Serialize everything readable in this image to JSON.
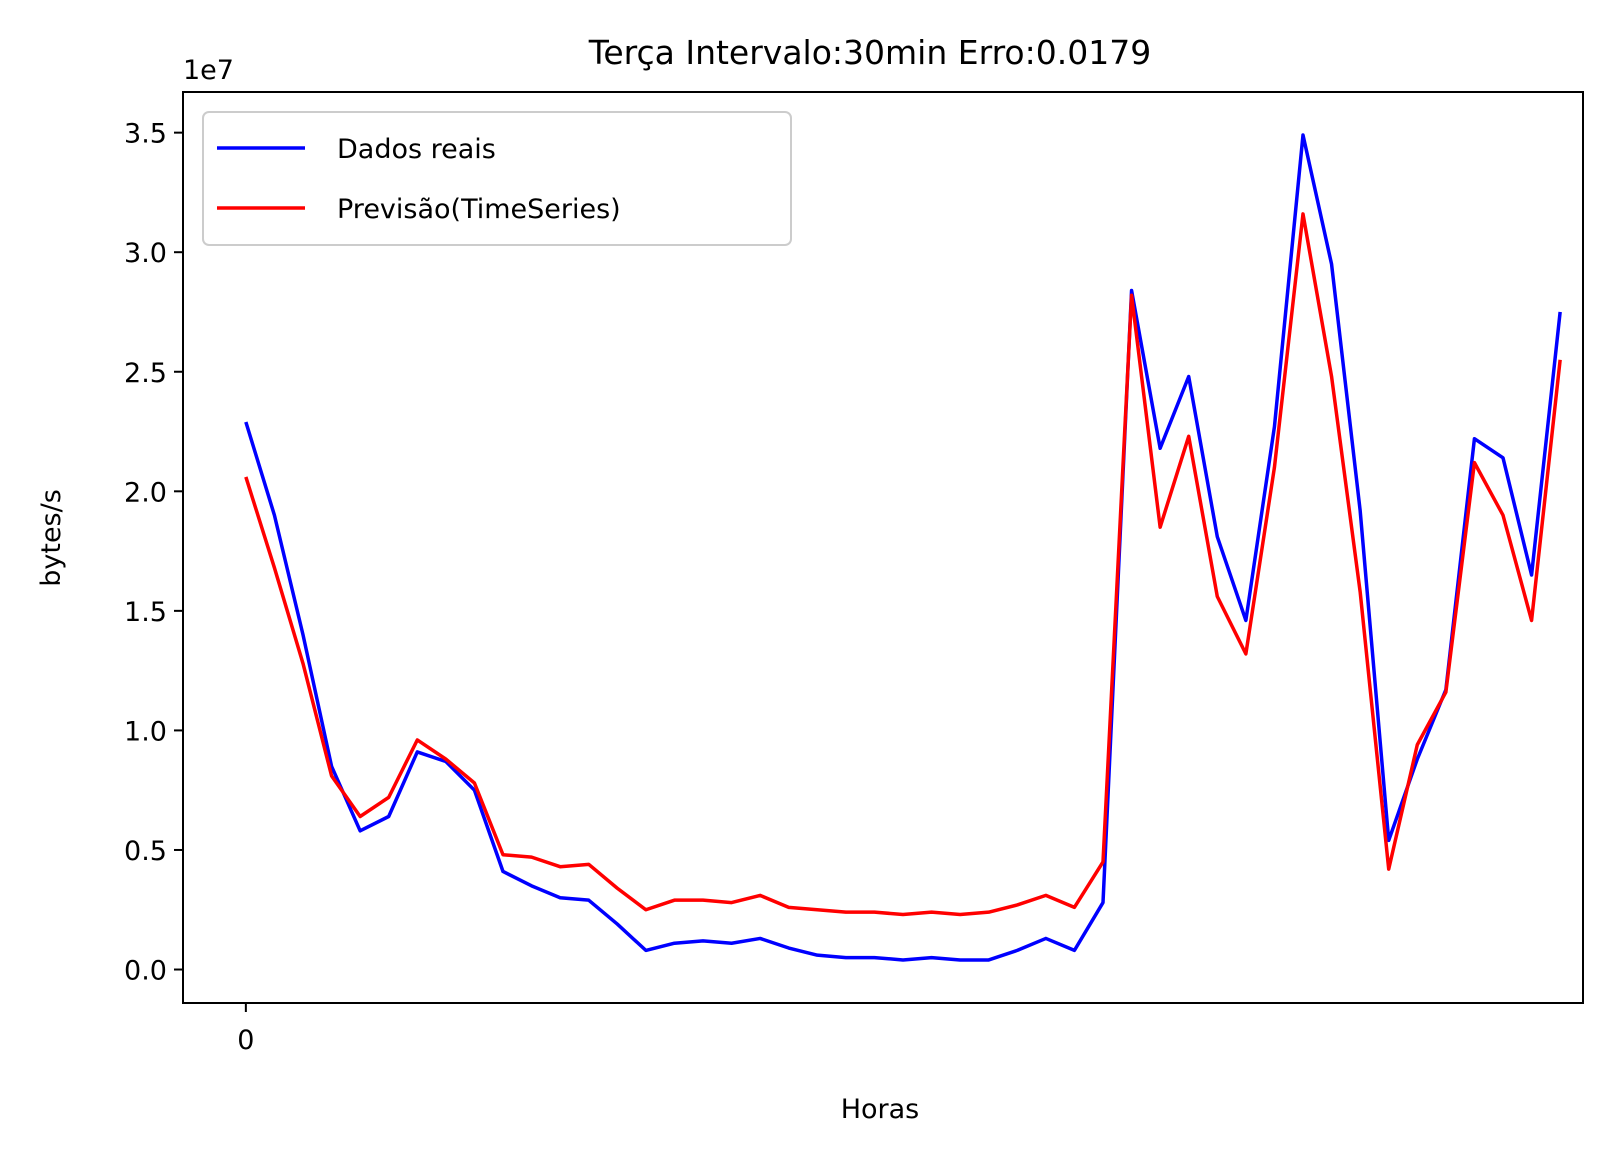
{
  "chart_data": {
    "type": "line",
    "title": "Terça Intervalo:30min Erro:0.0179",
    "xlabel": "Horas",
    "ylabel": "bytes/s",
    "y_offset_label": "1e7",
    "y_scale": 10000000,
    "ylim": [
      -0.14,
      3.67
    ],
    "xlim": [
      -2.2,
      46.8
    ],
    "y_ticks": [
      0.0,
      0.5,
      1.0,
      1.5,
      2.0,
      2.5,
      3.0,
      3.5
    ],
    "y_tick_labels": [
      "0.0",
      "0.5",
      "1.0",
      "1.5",
      "2.0",
      "2.5",
      "3.0",
      "3.5"
    ],
    "x_ticks": [
      0
    ],
    "x_tick_labels": [
      "0"
    ],
    "legend_position": "upper-left",
    "grid": false,
    "series": [
      {
        "name": "Dados reais",
        "color": "#0000ff",
        "values": [
          2.29,
          1.9,
          1.4,
          0.85,
          0.58,
          0.64,
          0.91,
          0.87,
          0.75,
          0.41,
          0.35,
          0.3,
          0.29,
          0.19,
          0.08,
          0.11,
          0.12,
          0.11,
          0.13,
          0.09,
          0.06,
          0.05,
          0.05,
          0.04,
          0.05,
          0.04,
          0.04,
          0.08,
          0.13,
          0.08,
          0.28,
          2.84,
          2.18,
          2.48,
          1.81,
          1.46,
          2.27,
          3.49,
          2.95,
          1.92,
          0.54,
          0.88,
          1.17,
          2.22,
          2.14,
          1.65,
          2.75
        ]
      },
      {
        "name": "Previsão(TimeSeries)",
        "color": "#ff0000",
        "values": [
          2.06,
          1.68,
          1.28,
          0.81,
          0.64,
          0.72,
          0.96,
          0.88,
          0.78,
          0.48,
          0.47,
          0.43,
          0.44,
          0.34,
          0.25,
          0.29,
          0.29,
          0.28,
          0.31,
          0.26,
          0.25,
          0.24,
          0.24,
          0.23,
          0.24,
          0.23,
          0.24,
          0.27,
          0.31,
          0.26,
          0.45,
          2.82,
          1.85,
          2.23,
          1.56,
          1.32,
          2.1,
          3.16,
          2.48,
          1.58,
          0.42,
          0.94,
          1.16,
          2.12,
          1.9,
          1.46,
          2.55
        ]
      }
    ]
  }
}
